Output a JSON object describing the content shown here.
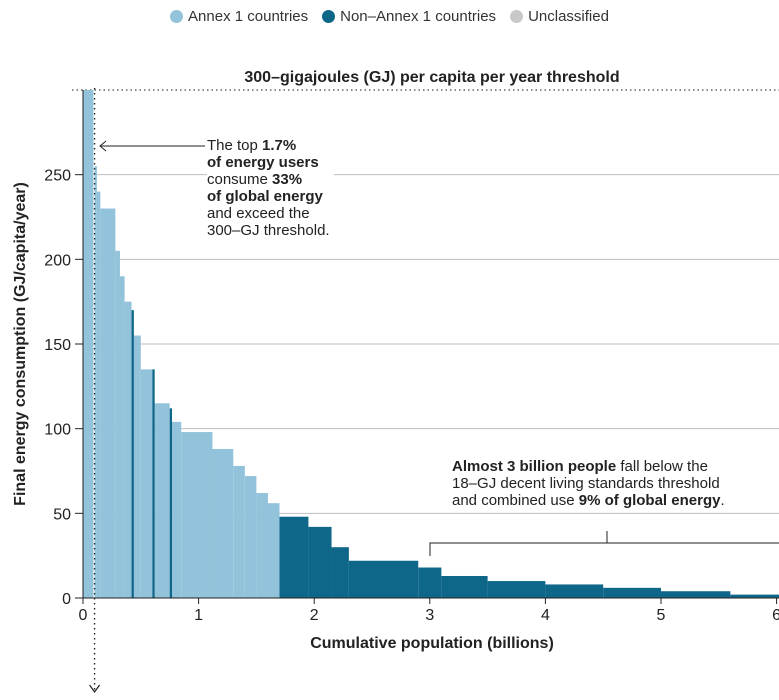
{
  "legend": {
    "items": [
      {
        "label": "Annex 1 countries",
        "color": "#93c3db"
      },
      {
        "label": "Non–Annex 1 countries",
        "color": "#0e6688"
      },
      {
        "label": "Unclassified",
        "color": "#c8c8c8"
      }
    ]
  },
  "annotations": {
    "top": {
      "line1_pre": "The top ",
      "line1_bold": "1.7%",
      "line2_bold": "of energy users",
      "line3_pre": "consume ",
      "line3_bold": "33%",
      "line4_bold": "of global energy",
      "line5": "and exceed the",
      "line6": "300–GJ threshold."
    },
    "bottom": {
      "line1_bold": "Almost 3 billion people",
      "line1_rest": " fall below the",
      "line2": "18–GJ decent living standards threshold",
      "line3_pre": "and combined use ",
      "line3_bold": "9% of global energy",
      "line3_post": "."
    }
  },
  "chart_data": {
    "type": "bar",
    "title": "300–gigajoules (GJ) per capita per year threshold",
    "xlabel": "Cumulative population (billions)",
    "ylabel": "Final energy consumption (GJ/capita/year)",
    "xlim": [
      0,
      6
    ],
    "ylim": [
      0,
      300
    ],
    "xticks": [
      0,
      1,
      2,
      3,
      4,
      5,
      6
    ],
    "yticks": [
      0,
      50,
      100,
      150,
      200,
      250
    ],
    "threshold": 300,
    "top_share_marker": 0.1,
    "grid": true,
    "legend_position": "top",
    "series": [
      {
        "name": "Annex 1 countries",
        "color": "#93c3db",
        "segments": [
          {
            "x0": 0.0,
            "x1": 0.09,
            "y": 300
          },
          {
            "x0": 0.1,
            "x1": 0.12,
            "y": 255
          },
          {
            "x0": 0.12,
            "x1": 0.15,
            "y": 240
          },
          {
            "x0": 0.15,
            "x1": 0.28,
            "y": 230
          },
          {
            "x0": 0.28,
            "x1": 0.32,
            "y": 205
          },
          {
            "x0": 0.32,
            "x1": 0.36,
            "y": 190
          },
          {
            "x0": 0.36,
            "x1": 0.42,
            "y": 175
          },
          {
            "x0": 0.44,
            "x1": 0.5,
            "y": 155
          },
          {
            "x0": 0.5,
            "x1": 0.6,
            "y": 135
          },
          {
            "x0": 0.62,
            "x1": 0.75,
            "y": 115
          },
          {
            "x0": 0.77,
            "x1": 0.85,
            "y": 104
          },
          {
            "x0": 0.85,
            "x1": 1.12,
            "y": 98
          },
          {
            "x0": 1.12,
            "x1": 1.3,
            "y": 88
          },
          {
            "x0": 1.3,
            "x1": 1.4,
            "y": 78
          },
          {
            "x0": 1.4,
            "x1": 1.5,
            "y": 72
          },
          {
            "x0": 1.5,
            "x1": 1.6,
            "y": 62
          },
          {
            "x0": 1.6,
            "x1": 1.7,
            "y": 56
          }
        ]
      },
      {
        "name": "Non–Annex 1 countries",
        "color": "#0e6688",
        "segments": [
          {
            "x0": 0.42,
            "x1": 0.44,
            "y": 170
          },
          {
            "x0": 0.6,
            "x1": 0.62,
            "y": 135
          },
          {
            "x0": 0.75,
            "x1": 0.77,
            "y": 112
          },
          {
            "x0": 1.7,
            "x1": 1.95,
            "y": 48
          },
          {
            "x0": 1.95,
            "x1": 2.15,
            "y": 42
          },
          {
            "x0": 2.15,
            "x1": 2.3,
            "y": 30
          },
          {
            "x0": 2.3,
            "x1": 2.9,
            "y": 22
          },
          {
            "x0": 2.9,
            "x1": 3.1,
            "y": 18
          },
          {
            "x0": 3.1,
            "x1": 3.5,
            "y": 13
          },
          {
            "x0": 3.5,
            "x1": 4.0,
            "y": 10
          },
          {
            "x0": 4.0,
            "x1": 4.5,
            "y": 8
          },
          {
            "x0": 4.5,
            "x1": 5.0,
            "y": 6
          },
          {
            "x0": 5.0,
            "x1": 5.6,
            "y": 4
          },
          {
            "x0": 5.6,
            "x1": 6.1,
            "y": 2
          }
        ]
      }
    ]
  }
}
